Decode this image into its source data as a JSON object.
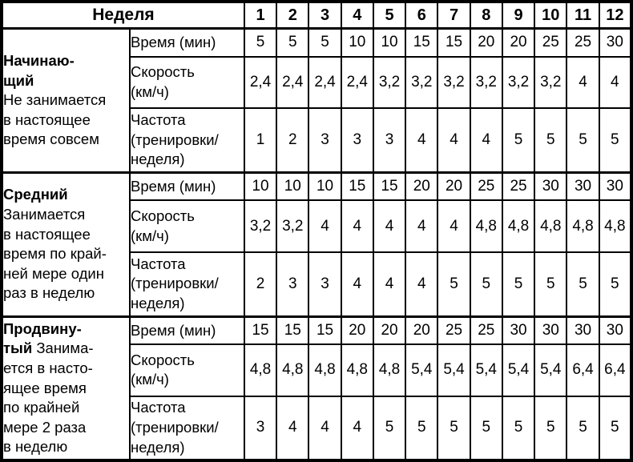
{
  "table": {
    "week_label": "Неделя",
    "weeks": [
      "1",
      "2",
      "3",
      "4",
      "5",
      "6",
      "7",
      "8",
      "9",
      "10",
      "11",
      "12"
    ],
    "sections": [
      {
        "id": "beginner",
        "category_lines": [
          [
            {
              "t": "Начинаю-",
              "b": true
            }
          ],
          [
            {
              "t": "щий",
              "b": true
            }
          ],
          [
            {
              "t": "Не занимается"
            }
          ],
          [
            {
              "t": "в настоящее"
            }
          ],
          [
            {
              "t": "время совсем"
            }
          ]
        ],
        "rows": [
          {
            "id": "time",
            "label_lines": [
              "Время (мин)"
            ],
            "values": [
              "5",
              "5",
              "5",
              "10",
              "10",
              "15",
              "15",
              "20",
              "20",
              "25",
              "25",
              "30"
            ]
          },
          {
            "id": "speed",
            "label_lines": [
              "Скорость",
              "(км/ч)"
            ],
            "values": [
              "2,4",
              "2,4",
              "2,4",
              "2,4",
              "3,2",
              "3,2",
              "3,2",
              "3,2",
              "3,2",
              "3,2",
              "4",
              "4"
            ]
          },
          {
            "id": "freq",
            "label_lines": [
              "Частота",
              "(тренировки/",
              "неделя)"
            ],
            "values": [
              "1",
              "2",
              "3",
              "3",
              "3",
              "4",
              "4",
              "4",
              "5",
              "5",
              "5",
              "5"
            ]
          }
        ]
      },
      {
        "id": "intermediate",
        "category_lines": [
          [
            {
              "t": "Средний",
              "b": true
            }
          ],
          [
            {
              "t": "Занимается"
            }
          ],
          [
            {
              "t": "в настоящее"
            }
          ],
          [
            {
              "t": "время по край-"
            }
          ],
          [
            {
              "t": "ней мере один"
            }
          ],
          [
            {
              "t": "раз в неделю"
            }
          ]
        ],
        "rows": [
          {
            "id": "time",
            "label_lines": [
              "Время (мин)"
            ],
            "values": [
              "10",
              "10",
              "10",
              "15",
              "15",
              "20",
              "20",
              "25",
              "25",
              "30",
              "30",
              "30"
            ]
          },
          {
            "id": "speed",
            "label_lines": [
              "Скорость",
              "(км/ч)"
            ],
            "values": [
              "3,2",
              "3,2",
              "4",
              "4",
              "4",
              "4",
              "4",
              "4,8",
              "4,8",
              "4,8",
              "4,8",
              "4,8"
            ]
          },
          {
            "id": "freq",
            "label_lines": [
              "Частота",
              "(тренировки/",
              "неделя)"
            ],
            "values": [
              "2",
              "3",
              "3",
              "4",
              "4",
              "4",
              "5",
              "5",
              "5",
              "5",
              "5",
              "5"
            ]
          }
        ]
      },
      {
        "id": "advanced",
        "category_lines": [
          [
            {
              "t": "Продвину-",
              "b": true
            }
          ],
          [
            {
              "t": "тый ",
              "b": true
            },
            {
              "t": "Занима-"
            }
          ],
          [
            {
              "t": "ется в насто-"
            }
          ],
          [
            {
              "t": "ящее время"
            }
          ],
          [
            {
              "t": "по крайней"
            }
          ],
          [
            {
              "t": "мере 2 раза"
            }
          ],
          [
            {
              "t": "в неделю"
            }
          ]
        ],
        "rows": [
          {
            "id": "time",
            "label_lines": [
              "Время (мин)"
            ],
            "values": [
              "15",
              "15",
              "15",
              "20",
              "20",
              "20",
              "25",
              "25",
              "30",
              "30",
              "30",
              "30"
            ]
          },
          {
            "id": "speed",
            "label_lines": [
              "Скорость",
              "(км/ч)"
            ],
            "values": [
              "4,8",
              "4,8",
              "4,8",
              "4,8",
              "4,8",
              "5,4",
              "5,4",
              "5,4",
              "5,4",
              "5,4",
              "6,4",
              "6,4"
            ]
          },
          {
            "id": "freq",
            "label_lines": [
              "Частота",
              "(тренировки/",
              "неделя)"
            ],
            "values": [
              "3",
              "4",
              "4",
              "4",
              "5",
              "5",
              "5",
              "5",
              "5",
              "5",
              "5",
              "5"
            ]
          }
        ]
      }
    ]
  }
}
